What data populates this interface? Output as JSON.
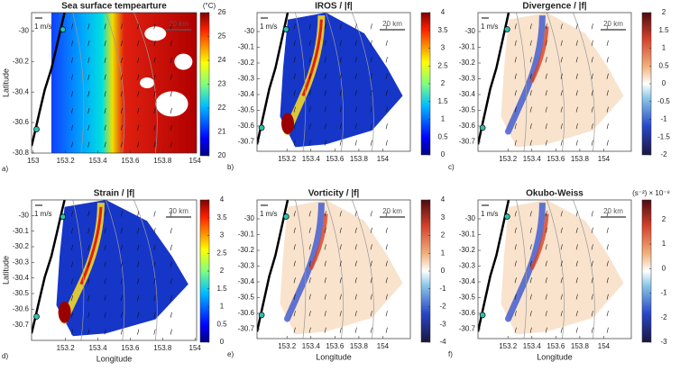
{
  "chart_data": [
    {
      "type": "heatmap",
      "title": "Sea surface tempearture",
      "panel_label": "a)",
      "ylabel": "Latitude",
      "colormap": "jet",
      "xlim": [
        152.99,
        154.01
      ],
      "xticks": [
        153,
        153.2,
        153.4,
        153.6,
        153.8,
        154
      ],
      "ylim": [
        -30.8,
        -29.88
      ],
      "yticks": [
        -30,
        -30.2,
        -30.4,
        -30.6,
        -30.8
      ],
      "arrow_label": "1 m/s",
      "scale_label": "20 km",
      "colorbar": {
        "label": "(°C)",
        "clim": [
          20,
          26
        ],
        "ticks": [
          20,
          21,
          22,
          23,
          24,
          25,
          26
        ]
      }
    },
    {
      "type": "heatmap",
      "title": "IROS / |f|",
      "panel_label": "b)",
      "colormap": "jet",
      "xlim": [
        152.95,
        154.23
      ],
      "xticks": [
        153.2,
        153.4,
        153.6,
        153.8,
        154
      ],
      "ylim": [
        -30.76,
        -29.88
      ],
      "yticks": [
        -30,
        -30.1,
        -30.2,
        -30.3,
        -30.4,
        -30.5,
        -30.6,
        -30.7
      ],
      "arrow_label": "1 m/s",
      "scale_label": "20 km",
      "colorbar": {
        "clim": [
          0,
          4
        ],
        "ticks": [
          0,
          0.5,
          1,
          1.5,
          2,
          2.5,
          3,
          3.5,
          4
        ]
      }
    },
    {
      "type": "heatmap",
      "title": "Divergence / |f|",
      "panel_label": "c)",
      "colormap": "balance",
      "xlim": [
        152.95,
        154.23
      ],
      "xticks": [
        153.2,
        153.4,
        153.6,
        153.8,
        154
      ],
      "ylim": [
        -30.76,
        -29.88
      ],
      "yticks": [
        -30,
        -30.1,
        -30.2,
        -30.3,
        -30.4,
        -30.5,
        -30.6,
        -30.7
      ],
      "arrow_label": "1 m/s",
      "scale_label": "20 km",
      "colorbar": {
        "clim": [
          -2,
          2
        ],
        "ticks": [
          -2,
          -1.5,
          -1,
          -0.5,
          0,
          0.5,
          1,
          1.5,
          2
        ]
      }
    },
    {
      "type": "heatmap",
      "title": "Strain / |f|",
      "panel_label": "d)",
      "xlabel": "Longitude",
      "ylabel": "Latitude",
      "colormap": "jet",
      "xlim": [
        152.99,
        154.01
      ],
      "xticks": [
        153.2,
        153.4,
        153.6,
        153.8,
        154
      ],
      "ylim": [
        -30.8,
        -29.9
      ],
      "yticks": [
        -30,
        -30.1,
        -30.2,
        -30.3,
        -30.4,
        -30.5,
        -30.6,
        -30.7
      ],
      "arrow_label": "1 m/s",
      "scale_label": "20 km",
      "colorbar": {
        "clim": [
          0,
          4
        ],
        "ticks": [
          0,
          0.5,
          1,
          1.5,
          2,
          2.5,
          3,
          3.5,
          4
        ]
      }
    },
    {
      "type": "heatmap",
      "title": "Vorticity / |f|",
      "panel_label": "e)",
      "xlabel": "Longitude",
      "colormap": "balance",
      "xlim": [
        152.95,
        154.23
      ],
      "xticks": [
        153.2,
        153.4,
        153.6,
        153.8,
        154
      ],
      "ylim": [
        -30.76,
        -29.88
      ],
      "yticks": [
        -30,
        -30.1,
        -30.2,
        -30.3,
        -30.4,
        -30.5,
        -30.6,
        -30.7
      ],
      "arrow_label": "1 m/s",
      "scale_label": "20 km",
      "colorbar": {
        "clim": [
          -4,
          4
        ],
        "ticks": [
          -4,
          -3,
          -2,
          -1,
          0,
          1,
          2,
          3,
          4
        ]
      }
    },
    {
      "type": "heatmap",
      "title": "Okubo-Weiss",
      "panel_label": "f)",
      "xlabel": "Longitude",
      "colormap": "balance",
      "xlim": [
        152.95,
        154.23
      ],
      "xticks": [
        153.2,
        153.4,
        153.6,
        153.8,
        154
      ],
      "ylim": [
        -30.76,
        -29.88
      ],
      "yticks": [
        -30,
        -30.1,
        -30.2,
        -30.3,
        -30.4,
        -30.5,
        -30.6,
        -30.7
      ],
      "arrow_label": "1 m/s",
      "scale_label": "20 km",
      "colorbar": {
        "label": "(s⁻²) × 10⁻⁸",
        "clim": [
          -3,
          2.8
        ],
        "ticks": [
          -3,
          -2,
          -1,
          0,
          1,
          2
        ]
      }
    }
  ]
}
